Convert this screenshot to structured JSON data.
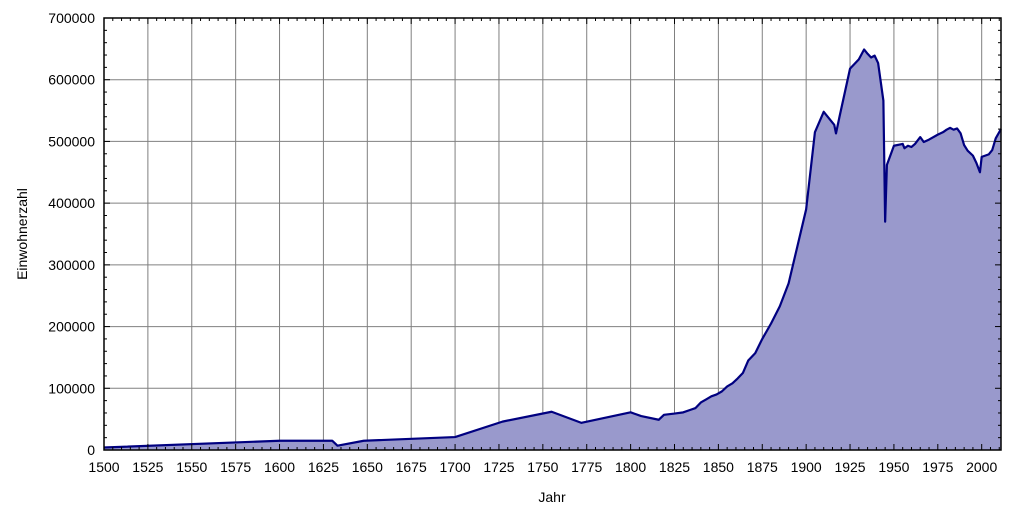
{
  "chart_data": {
    "type": "area",
    "xlabel": "Jahr",
    "ylabel": "Einwohnerzahl",
    "xlim": [
      1500,
      2011
    ],
    "ylim": [
      0,
      700000
    ],
    "x_ticks": [
      1500,
      1525,
      1550,
      1575,
      1600,
      1625,
      1650,
      1675,
      1700,
      1725,
      1750,
      1775,
      1800,
      1825,
      1850,
      1875,
      1900,
      1925,
      1950,
      1975,
      2000
    ],
    "y_ticks": [
      0,
      100000,
      200000,
      300000,
      400000,
      500000,
      600000,
      700000
    ],
    "grid": true,
    "colors": {
      "fill": "#9999cc",
      "line": "#000080",
      "grid": "#808080"
    },
    "series": [
      {
        "x": [
          1500,
          1600,
          1630,
          1633,
          1648,
          1700,
          1727,
          1755,
          1772,
          1800,
          1806,
          1816,
          1819,
          1825,
          1830,
          1834,
          1837,
          1840,
          1843,
          1846,
          1849,
          1852,
          1855,
          1858,
          1861,
          1864,
          1867,
          1871,
          1875,
          1880,
          1885,
          1890,
          1895,
          1900,
          1905,
          1910,
          1916,
          1917,
          1919,
          1925,
          1930,
          1933,
          1935,
          1937,
          1939,
          1941,
          1944,
          1945,
          1946,
          1950,
          1955,
          1956,
          1958,
          1960,
          1962,
          1965,
          1967,
          1970,
          1975,
          1978,
          1980,
          1982,
          1984,
          1986,
          1988,
          1990,
          1992,
          1995,
          1997,
          1999,
          2000,
          2002,
          2004,
          2006,
          2008,
          2011
        ],
        "values": [
          4000,
          15000,
          15000,
          7000,
          15000,
          21000,
          46000,
          62000,
          44000,
          61000,
          55000,
          49000,
          57000,
          59000,
          61000,
          65000,
          68000,
          77000,
          82000,
          87000,
          90000,
          95000,
          103000,
          108000,
          116000,
          125000,
          145000,
          157000,
          180000,
          205000,
          233000,
          270000,
          330000,
          390000,
          515000,
          548000,
          527000,
          513000,
          540000,
          618000,
          633000,
          649000,
          642000,
          636000,
          639000,
          627000,
          566000,
          370000,
          462000,
          493000,
          496000,
          489000,
          493000,
          491000,
          496000,
          507000,
          499000,
          503000,
          511000,
          515000,
          519000,
          522000,
          519000,
          521000,
          513000,
          494000,
          485000,
          477000,
          465000,
          450000,
          475000,
          477000,
          479000,
          486000,
          505000,
          520000
        ]
      }
    ]
  }
}
